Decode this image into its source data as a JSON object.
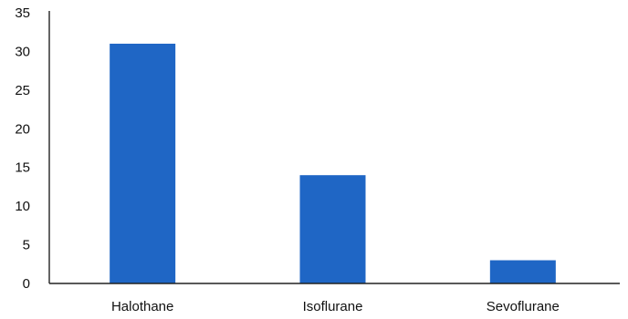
{
  "chart_data": {
    "type": "bar",
    "title": "",
    "xlabel": "",
    "ylabel": "",
    "categories": [
      "Halothane",
      "Isoflurane",
      "Sevoflurane"
    ],
    "values": [
      31,
      14,
      3
    ],
    "ylim": [
      0,
      35
    ],
    "yticks": [
      "0",
      "5",
      "10",
      "15",
      "20",
      "25",
      "30",
      "35"
    ],
    "bar_color": "#1f66c5",
    "grid": false,
    "legend": "none"
  }
}
